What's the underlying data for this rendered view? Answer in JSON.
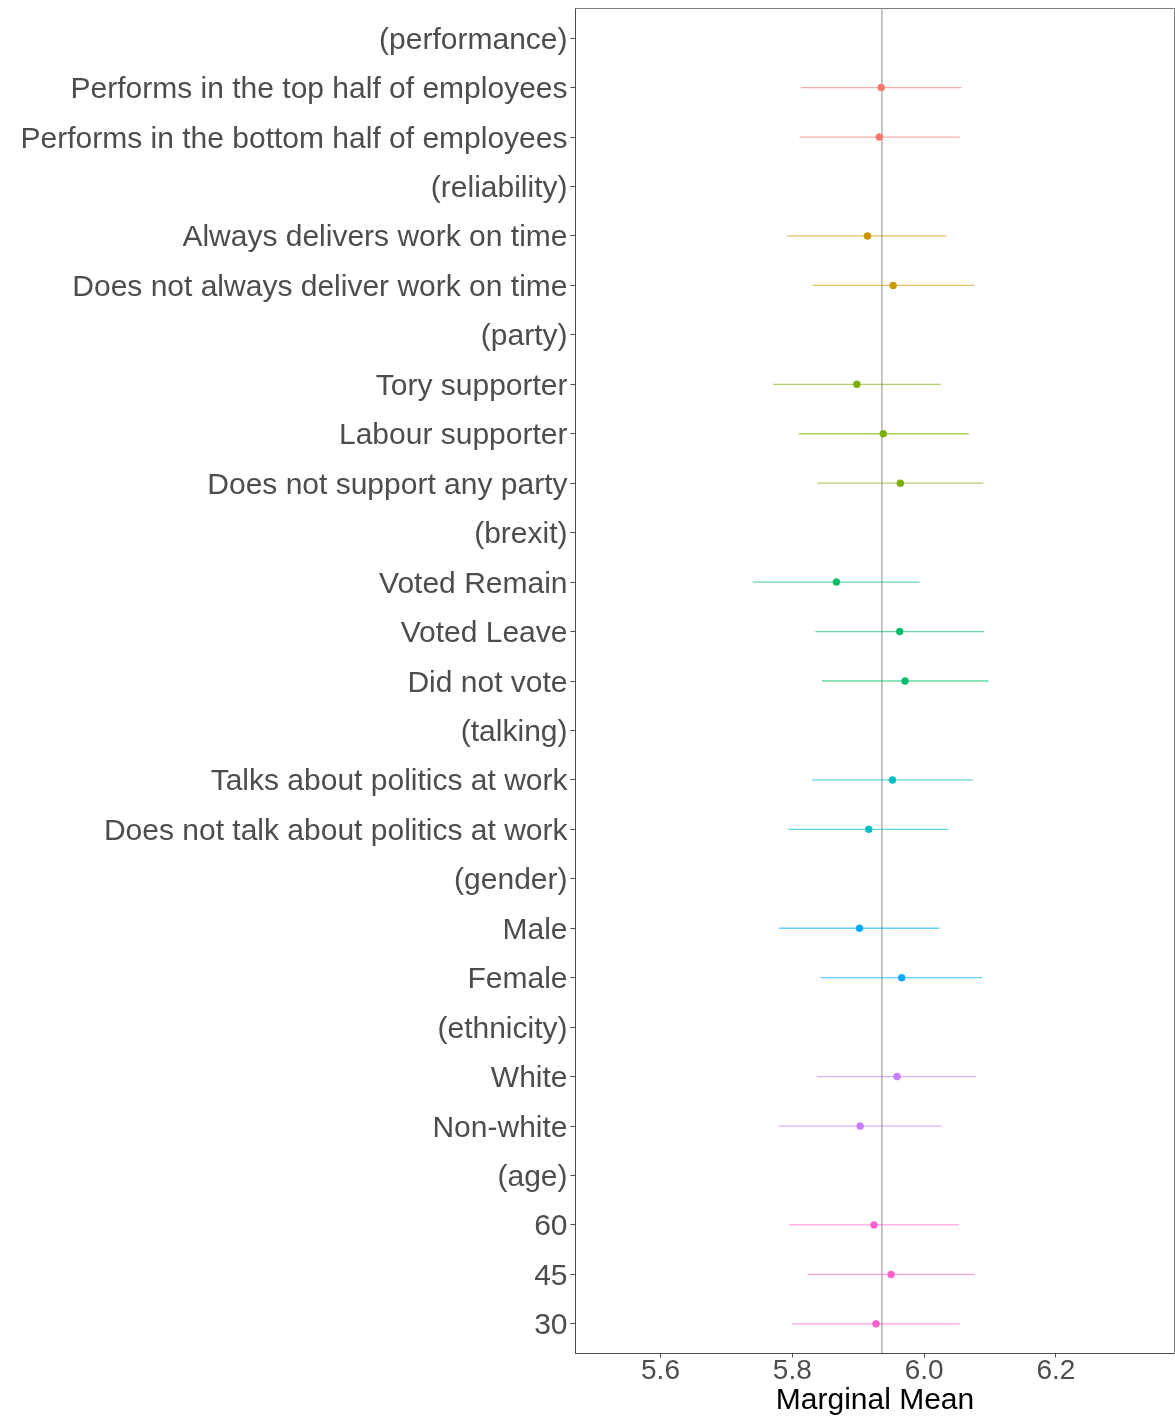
{
  "chart_data": {
    "type": "scatter",
    "orientation": "horizontal",
    "xlabel": "Marginal Mean",
    "categories": [
      "(performance)",
      "Performs in the top half of employees",
      "Performs in the bottom half of employees",
      "(reliability)",
      "Always delivers work on time",
      "Does not always deliver work on time",
      "(party)",
      "Tory supporter",
      "Labour supporter",
      "Does not support any party",
      "(brexit)",
      "Voted Remain",
      "Voted Leave",
      "Did not vote",
      "(talking)",
      "Talks about politics at work",
      "Does not talk about politics at work",
      "(gender)",
      "Male",
      "Female",
      "(ethnicity)",
      "White",
      "Non-white",
      "(age)",
      "60",
      "45",
      "30"
    ],
    "values": [
      null,
      5.935,
      5.932,
      null,
      5.914,
      5.953,
      null,
      5.898,
      5.938,
      5.964,
      null,
      5.867,
      5.963,
      5.971,
      null,
      5.952,
      5.916,
      null,
      5.902,
      5.966,
      null,
      5.959,
      5.903,
      null,
      5.924,
      5.95,
      5.927
    ],
    "errors": [
      null,
      [
        5.813,
        6.057
      ],
      [
        5.811,
        6.054
      ],
      null,
      [
        5.792,
        6.034
      ],
      [
        5.831,
        6.076
      ],
      null,
      [
        5.771,
        6.025
      ],
      [
        5.81,
        6.068
      ],
      [
        5.838,
        6.09
      ],
      null,
      [
        5.74,
        5.993
      ],
      [
        5.835,
        6.091
      ],
      [
        5.845,
        6.098
      ],
      null,
      [
        5.83,
        6.074
      ],
      [
        5.794,
        6.037
      ],
      null,
      [
        5.78,
        6.023
      ],
      [
        5.843,
        6.088
      ],
      null,
      [
        5.838,
        6.079
      ],
      [
        5.779,
        6.027
      ],
      null,
      [
        5.795,
        6.053
      ],
      [
        5.823,
        6.077
      ],
      [
        5.8,
        6.054
      ]
    ],
    "colors": [
      null,
      "#f8766d",
      "#f8766d",
      null,
      "#cd9600",
      "#cd9600",
      null,
      "#7cae00",
      "#7cae00",
      "#7cae00",
      null,
      "#00be67",
      "#00be67",
      "#00be67",
      null,
      "#00bfc4",
      "#00bfc4",
      null,
      "#00a9ff",
      "#00a9ff",
      null,
      "#c77cff",
      "#c77cff",
      null,
      "#ff61cc",
      "#ff61cc",
      "#ff61cc"
    ],
    "xlim": [
      5.471,
      6.38
    ],
    "xticks": [
      5.6,
      5.8,
      {
        "value": 6.0,
        "label": "6.0"
      },
      6.2
    ],
    "ref_lines": [
      {
        "axis": "x",
        "value": 5.936,
        "color": "#b3b3b3"
      }
    ],
    "grid": false,
    "marker": "circle"
  }
}
